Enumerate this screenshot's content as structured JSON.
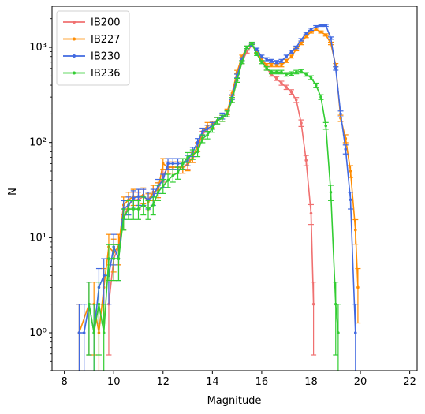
{
  "chart_data": {
    "type": "line",
    "xlabel": "Magnitude",
    "ylabel": "N",
    "xlim": [
      7.5,
      22.3
    ],
    "ylim": [
      0.4,
      2700
    ],
    "y_scale": "log",
    "grid": false,
    "legend_position": "top-left",
    "x_ticks": [
      "8",
      "10",
      "12",
      "14",
      "16",
      "18",
      "20",
      "22"
    ],
    "y_ticks": [
      "10⁰",
      "10¹",
      "10²",
      "10³"
    ],
    "series": [
      {
        "name": "IB200",
        "color": "#f07070",
        "points": [
          [
            9.8,
            2
          ],
          [
            10.0,
            6
          ],
          [
            10.2,
            8
          ],
          [
            10.4,
            16
          ],
          [
            10.6,
            22
          ],
          [
            10.8,
            25
          ],
          [
            11.0,
            25
          ],
          [
            11.2,
            27
          ],
          [
            11.4,
            25
          ],
          [
            11.6,
            30
          ],
          [
            11.8,
            32
          ],
          [
            12.0,
            45
          ],
          [
            12.2,
            55
          ],
          [
            12.4,
            55
          ],
          [
            12.6,
            55
          ],
          [
            12.8,
            55
          ],
          [
            13.0,
            60
          ],
          [
            13.2,
            70
          ],
          [
            13.4,
            90
          ],
          [
            13.6,
            120
          ],
          [
            13.8,
            140
          ],
          [
            14.0,
            150
          ],
          [
            14.2,
            170
          ],
          [
            14.4,
            180
          ],
          [
            14.6,
            200
          ],
          [
            14.8,
            280
          ],
          [
            15.0,
            450
          ],
          [
            15.2,
            700
          ],
          [
            15.4,
            900
          ],
          [
            15.6,
            1050
          ],
          [
            15.8,
            900
          ],
          [
            16.0,
            750
          ],
          [
            16.2,
            600
          ],
          [
            16.4,
            520
          ],
          [
            16.6,
            470
          ],
          [
            16.8,
            420
          ],
          [
            17.0,
            380
          ],
          [
            17.2,
            340
          ],
          [
            17.4,
            280
          ],
          [
            17.6,
            160
          ],
          [
            17.8,
            65
          ],
          [
            18.0,
            18
          ],
          [
            18.1,
            2
          ]
        ]
      },
      {
        "name": "IB227",
        "color": "#ff8c00",
        "points": [
          [
            8.6,
            1
          ],
          [
            9.0,
            2
          ],
          [
            9.2,
            2
          ],
          [
            9.4,
            1
          ],
          [
            9.6,
            3
          ],
          [
            9.8,
            8
          ],
          [
            10.0,
            7
          ],
          [
            10.2,
            8
          ],
          [
            10.4,
            22
          ],
          [
            10.6,
            25
          ],
          [
            10.8,
            27
          ],
          [
            11.0,
            27
          ],
          [
            11.2,
            28
          ],
          [
            11.4,
            24
          ],
          [
            11.6,
            30
          ],
          [
            11.8,
            32
          ],
          [
            12.0,
            60
          ],
          [
            12.2,
            55
          ],
          [
            12.4,
            55
          ],
          [
            12.6,
            55
          ],
          [
            12.8,
            55
          ],
          [
            13.0,
            58
          ],
          [
            13.2,
            70
          ],
          [
            13.4,
            90
          ],
          [
            13.6,
            130
          ],
          [
            13.8,
            150
          ],
          [
            14.0,
            155
          ],
          [
            14.2,
            170
          ],
          [
            14.4,
            180
          ],
          [
            14.6,
            210
          ],
          [
            14.8,
            330
          ],
          [
            15.0,
            550
          ],
          [
            15.2,
            800
          ],
          [
            15.4,
            1000
          ],
          [
            15.6,
            1050
          ],
          [
            15.8,
            900
          ],
          [
            16.0,
            750
          ],
          [
            16.2,
            650
          ],
          [
            16.4,
            650
          ],
          [
            16.6,
            650
          ],
          [
            16.8,
            650
          ],
          [
            17.0,
            720
          ],
          [
            17.2,
            800
          ],
          [
            17.4,
            950
          ],
          [
            17.6,
            1100
          ],
          [
            17.8,
            1300
          ],
          [
            18.0,
            1450
          ],
          [
            18.2,
            1550
          ],
          [
            18.4,
            1450
          ],
          [
            18.6,
            1350
          ],
          [
            18.8,
            1100
          ],
          [
            19.0,
            650
          ],
          [
            19.2,
            180
          ],
          [
            19.4,
            110
          ],
          [
            19.6,
            50
          ],
          [
            19.8,
            12
          ],
          [
            19.9,
            3
          ]
        ]
      },
      {
        "name": "IB230",
        "color": "#4169e1",
        "points": [
          [
            8.6,
            1
          ],
          [
            8.8,
            1
          ],
          [
            9.0,
            2
          ],
          [
            9.2,
            1
          ],
          [
            9.4,
            3
          ],
          [
            9.6,
            4
          ],
          [
            9.8,
            4
          ],
          [
            10.0,
            8
          ],
          [
            10.2,
            6
          ],
          [
            10.4,
            20
          ],
          [
            10.6,
            22
          ],
          [
            10.8,
            26
          ],
          [
            11.0,
            27
          ],
          [
            11.2,
            27
          ],
          [
            11.4,
            25
          ],
          [
            11.6,
            27
          ],
          [
            11.8,
            35
          ],
          [
            12.0,
            40
          ],
          [
            12.2,
            60
          ],
          [
            12.4,
            60
          ],
          [
            12.6,
            60
          ],
          [
            12.8,
            60
          ],
          [
            13.0,
            65
          ],
          [
            13.2,
            80
          ],
          [
            13.4,
            100
          ],
          [
            13.6,
            130
          ],
          [
            13.8,
            140
          ],
          [
            14.0,
            150
          ],
          [
            14.2,
            170
          ],
          [
            14.4,
            190
          ],
          [
            14.6,
            200
          ],
          [
            14.8,
            300
          ],
          [
            15.0,
            500
          ],
          [
            15.2,
            750
          ],
          [
            15.4,
            1000
          ],
          [
            15.6,
            1050
          ],
          [
            15.8,
            950
          ],
          [
            16.0,
            800
          ],
          [
            16.2,
            750
          ],
          [
            16.4,
            720
          ],
          [
            16.6,
            700
          ],
          [
            16.8,
            720
          ],
          [
            17.0,
            800
          ],
          [
            17.2,
            900
          ],
          [
            17.4,
            1000
          ],
          [
            17.6,
            1200
          ],
          [
            17.8,
            1400
          ],
          [
            18.0,
            1550
          ],
          [
            18.2,
            1650
          ],
          [
            18.4,
            1700
          ],
          [
            18.6,
            1700
          ],
          [
            18.8,
            1250
          ],
          [
            19.0,
            600
          ],
          [
            19.2,
            200
          ],
          [
            19.4,
            85
          ],
          [
            19.6,
            25
          ],
          [
            19.8,
            1
          ]
        ]
      },
      {
        "name": "IB236",
        "color": "#32cd32",
        "points": [
          [
            9.0,
            2
          ],
          [
            9.2,
            1
          ],
          [
            9.4,
            2
          ],
          [
            9.6,
            1
          ],
          [
            9.8,
            6
          ],
          [
            10.0,
            6
          ],
          [
            10.2,
            6
          ],
          [
            10.4,
            16
          ],
          [
            10.6,
            20
          ],
          [
            10.8,
            20
          ],
          [
            11.0,
            20
          ],
          [
            11.2,
            22
          ],
          [
            11.4,
            20
          ],
          [
            11.6,
            22
          ],
          [
            11.8,
            30
          ],
          [
            12.0,
            35
          ],
          [
            12.2,
            40
          ],
          [
            12.4,
            45
          ],
          [
            12.6,
            48
          ],
          [
            12.8,
            60
          ],
          [
            13.0,
            70
          ],
          [
            13.2,
            75
          ],
          [
            13.4,
            80
          ],
          [
            13.6,
            110
          ],
          [
            13.8,
            120
          ],
          [
            14.0,
            140
          ],
          [
            14.2,
            170
          ],
          [
            14.4,
            180
          ],
          [
            14.6,
            200
          ],
          [
            14.8,
            280
          ],
          [
            15.0,
            450
          ],
          [
            15.2,
            700
          ],
          [
            15.4,
            1000
          ],
          [
            15.6,
            1100
          ],
          [
            15.8,
            850
          ],
          [
            16.0,
            700
          ],
          [
            16.2,
            600
          ],
          [
            16.4,
            550
          ],
          [
            16.6,
            550
          ],
          [
            16.8,
            550
          ],
          [
            17.0,
            520
          ],
          [
            17.2,
            530
          ],
          [
            17.4,
            550
          ],
          [
            17.6,
            560
          ],
          [
            17.8,
            520
          ],
          [
            18.0,
            480
          ],
          [
            18.2,
            400
          ],
          [
            18.4,
            300
          ],
          [
            18.6,
            150
          ],
          [
            18.8,
            30
          ],
          [
            19.0,
            2
          ],
          [
            19.1,
            1
          ]
        ]
      }
    ]
  }
}
